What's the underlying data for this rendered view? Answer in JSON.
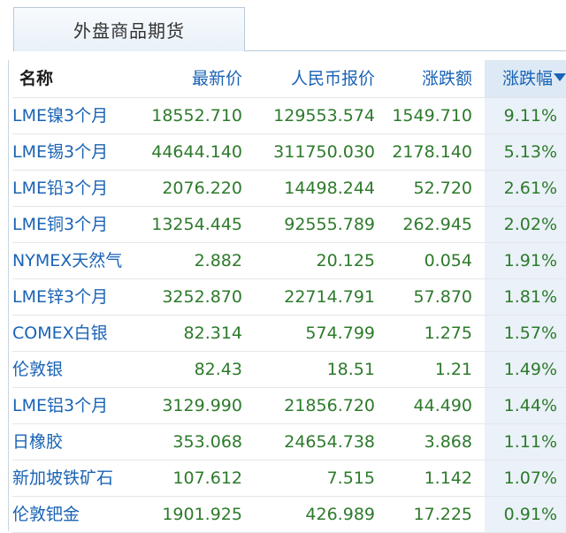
{
  "tab": {
    "label": "外盘商品期货"
  },
  "columns": {
    "name": "名称",
    "last": "最新价",
    "rmb": "人民币报价",
    "change": "涨跌额",
    "pct": "涨跌幅"
  },
  "sort": {
    "column": "涨跌幅",
    "direction": "descending",
    "icon": "sort-down-triangle-icon"
  },
  "rows": [
    {
      "name": "LME镍3个月",
      "last": "18552.710",
      "rmb": "129553.574",
      "change": "1549.710",
      "pct": "9.11%"
    },
    {
      "name": "LME锡3个月",
      "last": "44644.140",
      "rmb": "311750.030",
      "change": "2178.140",
      "pct": "5.13%"
    },
    {
      "name": "LME铅3个月",
      "last": "2076.220",
      "rmb": "14498.244",
      "change": "52.720",
      "pct": "2.61%"
    },
    {
      "name": "LME铜3个月",
      "last": "13254.445",
      "rmb": "92555.789",
      "change": "262.945",
      "pct": "2.02%"
    },
    {
      "name": "NYMEX天然气",
      "last": "2.882",
      "rmb": "20.125",
      "change": "0.054",
      "pct": "1.91%"
    },
    {
      "name": "LME锌3个月",
      "last": "3252.870",
      "rmb": "22714.791",
      "change": "57.870",
      "pct": "1.81%"
    },
    {
      "name": "COMEX白银",
      "last": "82.314",
      "rmb": "574.799",
      "change": "1.275",
      "pct": "1.57%"
    },
    {
      "name": "伦敦银",
      "last": "82.43",
      "rmb": "18.51",
      "change": "1.21",
      "pct": "1.49%"
    },
    {
      "name": "LME铝3个月",
      "last": "3129.990",
      "rmb": "21856.720",
      "change": "44.490",
      "pct": "1.44%"
    },
    {
      "name": "日橡胶",
      "last": "353.068",
      "rmb": "24654.738",
      "change": "3.868",
      "pct": "1.11%"
    },
    {
      "name": "新加坡铁矿石",
      "last": "107.612",
      "rmb": "7.515",
      "change": "1.142",
      "pct": "1.07%"
    },
    {
      "name": "伦敦钯金",
      "last": "1901.925",
      "rmb": "426.989",
      "change": "17.225",
      "pct": "0.91%"
    }
  ],
  "colors": {
    "link_blue": "#1a63b5",
    "rise_green": "#2d7a2b",
    "sorted_column_bg": "#eaf1f8",
    "tab_border": "#b9c9d9"
  }
}
